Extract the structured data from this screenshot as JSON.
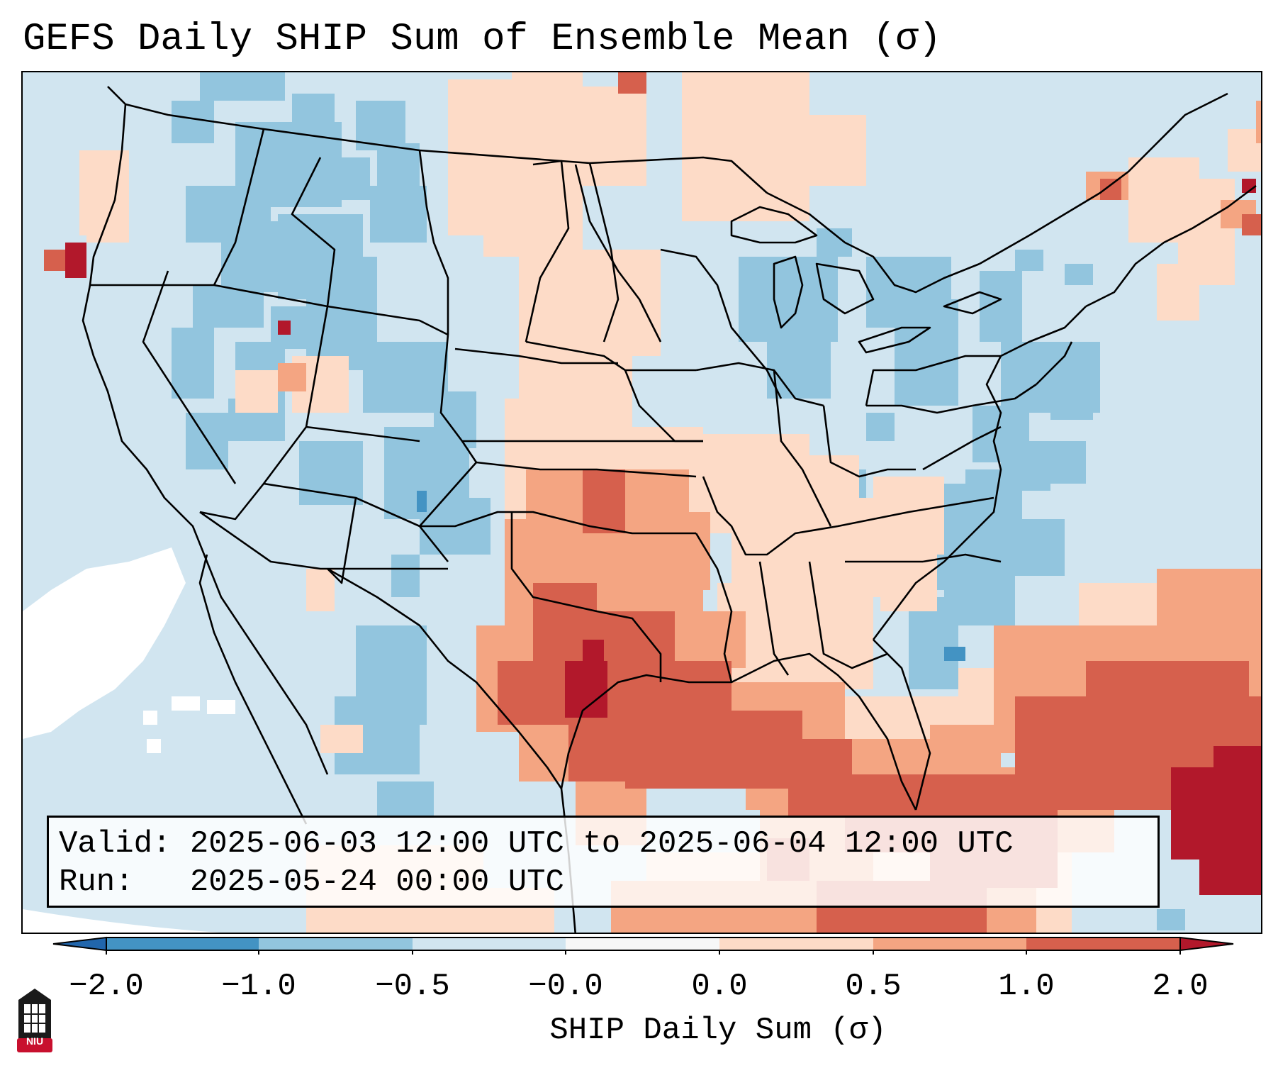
{
  "title": "GEFS Daily SHIP Sum of Ensemble Mean (σ)",
  "info": {
    "valid_label": "Valid:",
    "valid_value": "2025-06-03 12:00 UTC to 2025-06-04 12:00 UTC",
    "run_label": "Run:",
    "run_value": "2025-05-24 00:00 UTC"
  },
  "colorbar": {
    "label": "SHIP Daily Sum (σ)",
    "ticks": [
      "−2.0",
      "−1.0",
      "−0.5",
      "−0.0",
      "0.0",
      "0.5",
      "1.0",
      "2.0"
    ],
    "bins": [
      {
        "range": "-2.0 to -1.0",
        "color": "#4393c3"
      },
      {
        "range": "-1.0 to -0.5",
        "color": "#92c5de"
      },
      {
        "range": "-0.5 to -0.0",
        "color": "#d1e5f0"
      },
      {
        "range": "-0.0 to 0.0",
        "color": "#f7f7f7"
      },
      {
        "range": "0.0 to 0.5",
        "color": "#fddbc7"
      },
      {
        "range": "0.5 to 1.0",
        "color": "#f4a582"
      },
      {
        "range": "1.0 to 2.0",
        "color": "#d6604d"
      },
      {
        "range": "> 2.0",
        "color": "#b2182b"
      }
    ],
    "under_color": "#2166ac",
    "over_color": "#b2182b"
  },
  "map": {
    "projection": "Lambert Conformal (CONUS)",
    "region": "Contiguous United States, northern Mexico, Gulf of Mexico, Caribbean",
    "background_color": "#d1e5f0",
    "white_zone_color": "#ffffff"
  },
  "logo": {
    "text": "NIU",
    "color": "#c8102e"
  }
}
